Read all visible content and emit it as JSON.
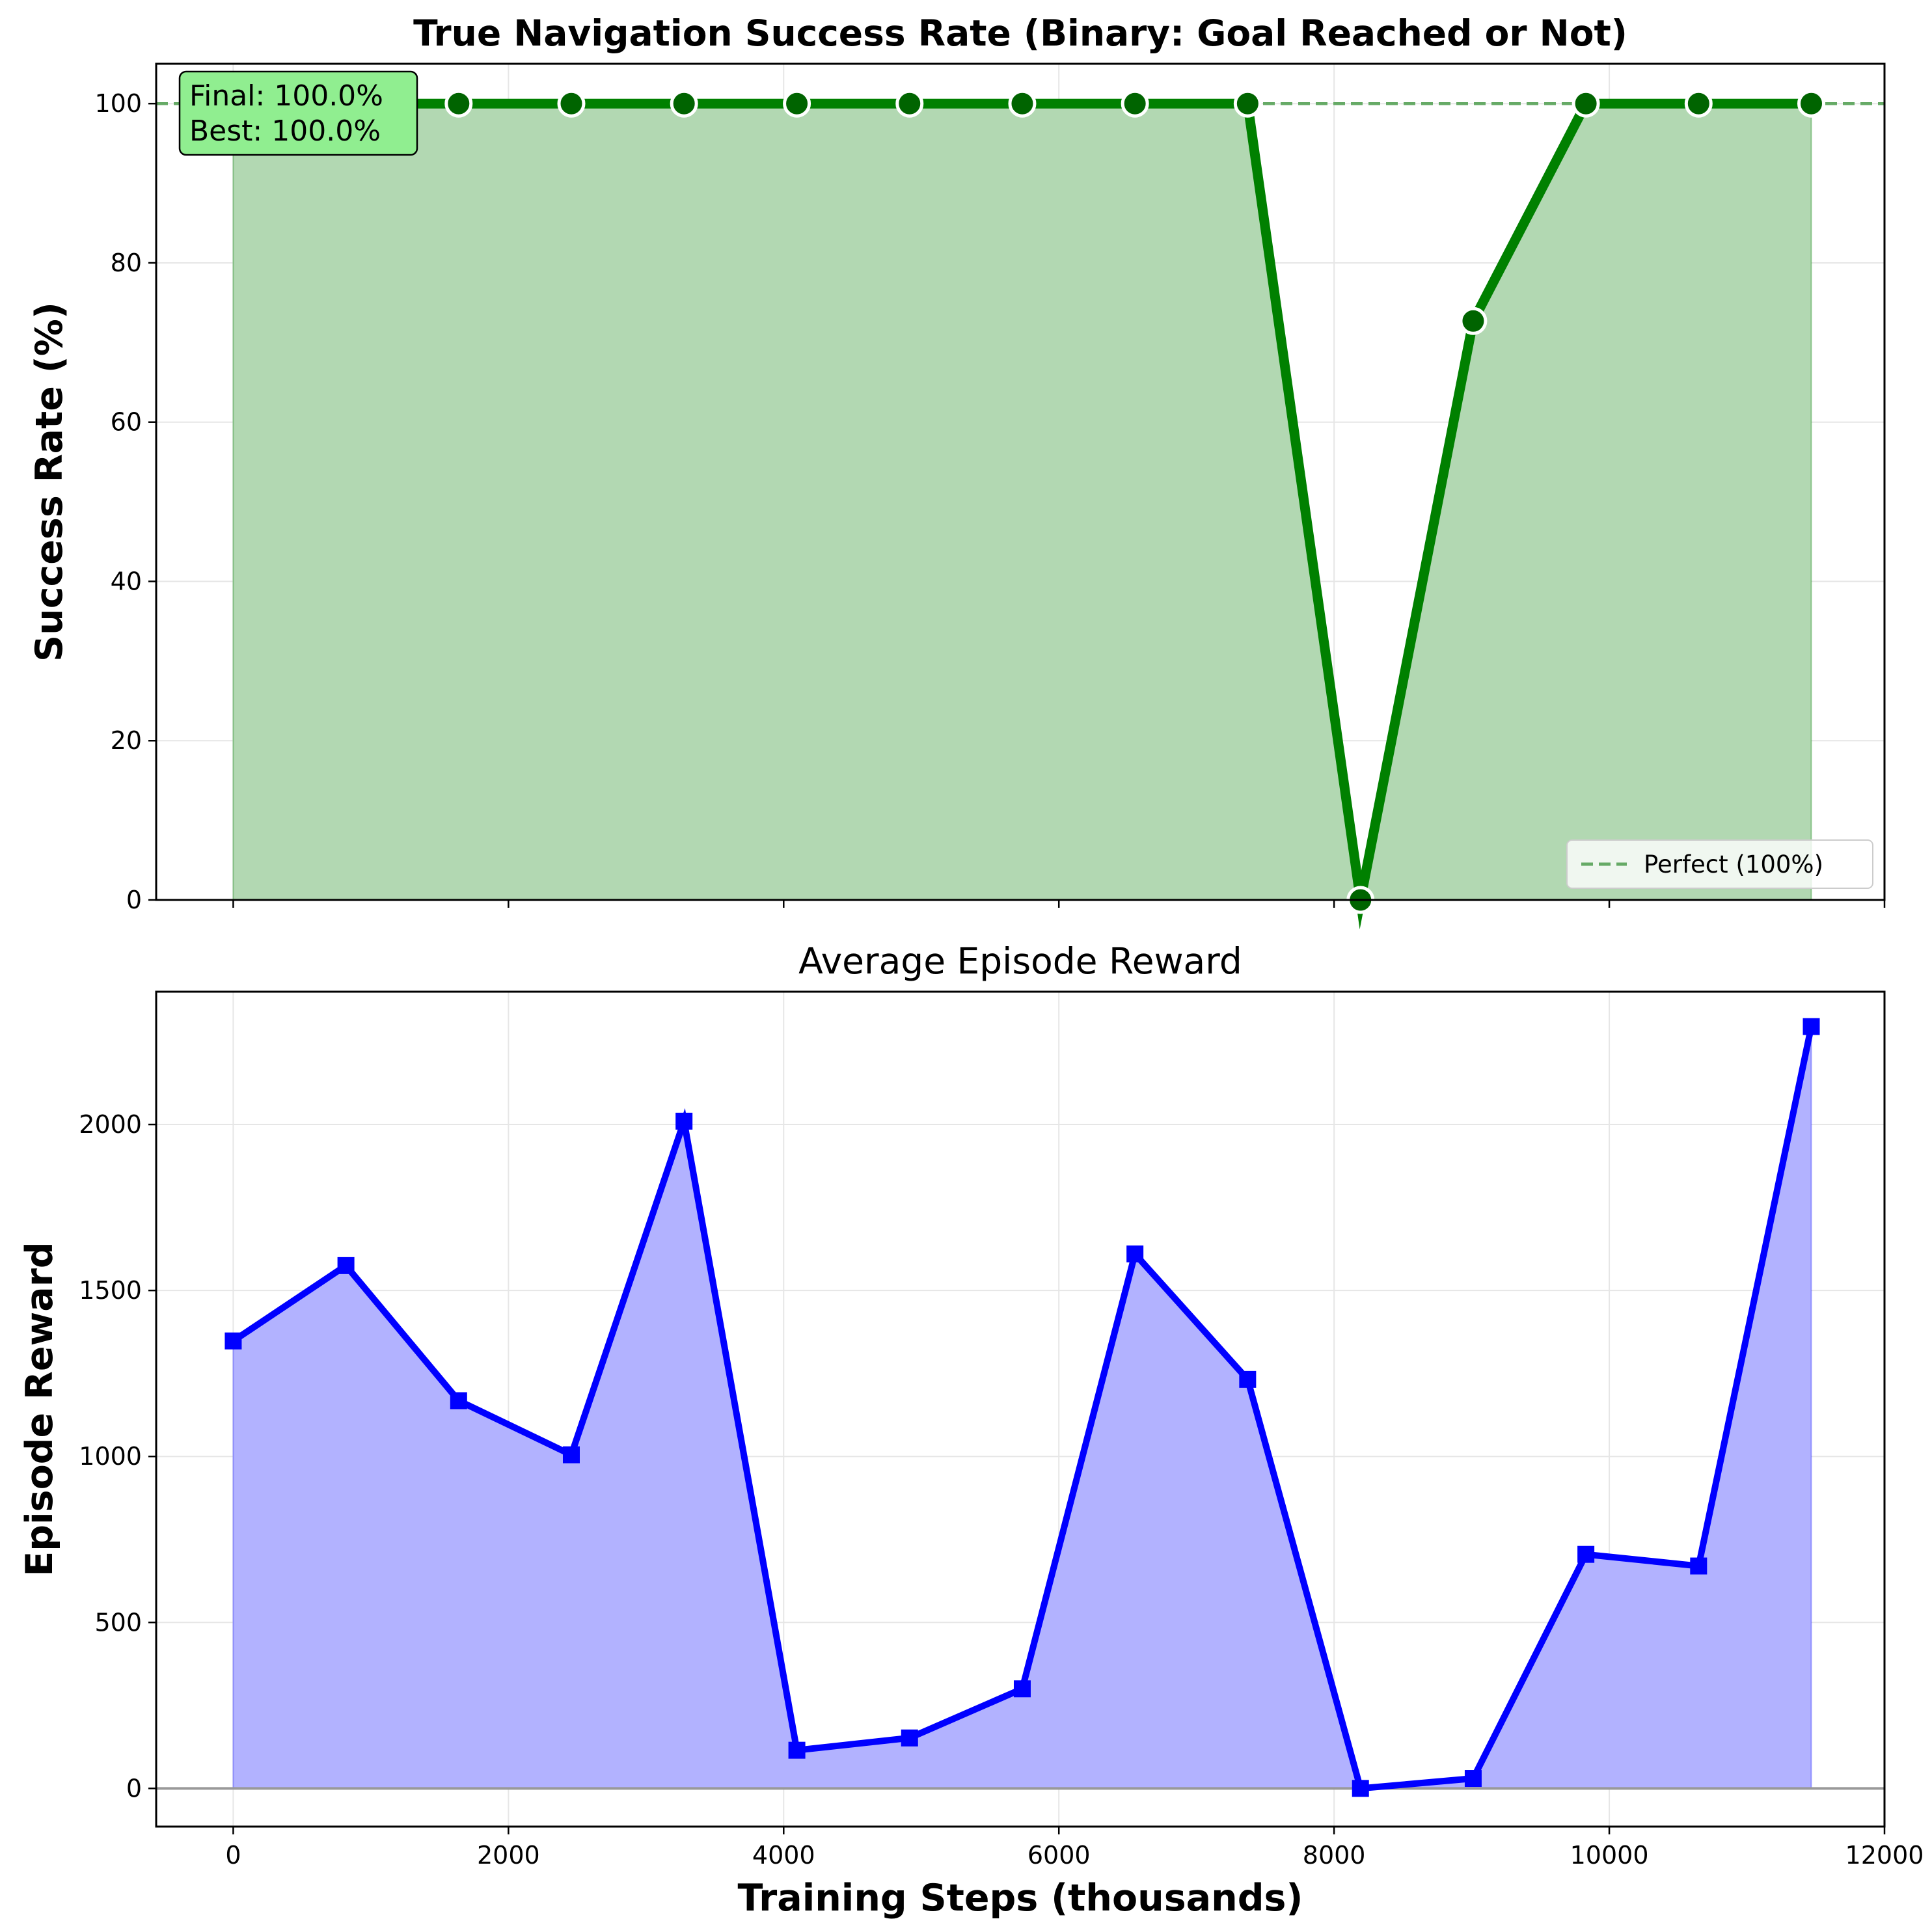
{
  "colors": {
    "success_line": "#008000",
    "success_marker": "#006400",
    "success_fill": "#b2d8b2",
    "perfect_line": "#66aa66",
    "reward_line": "#0000ff",
    "reward_fill": "#b2b2ff",
    "annotation_bg": "#90ee90",
    "zero_line": "#999999",
    "grid": "#e6e6e6"
  },
  "chart_data": [
    {
      "type": "line",
      "title": "True Navigation Success Rate (Binary: Goal Reached or Not)",
      "xlabel": "",
      "ylabel": "Success Rate (%)",
      "xlim": [
        -560,
        12000
      ],
      "ylim": [
        0,
        105
      ],
      "yticks": [
        0,
        20,
        40,
        60,
        80,
        100
      ],
      "xticks": [
        0,
        2000,
        4000,
        6000,
        8000,
        10000,
        12000
      ],
      "show_x_tick_labels": false,
      "grid": true,
      "area_fill": true,
      "series": [
        {
          "x": [
            0,
            819,
            1638,
            2457,
            3276,
            4096,
            4915,
            5734,
            6553,
            7372,
            8192,
            9011,
            9830,
            10649,
            11468
          ],
          "values": [
            100,
            100,
            100,
            100,
            100,
            100,
            100,
            100,
            100,
            100,
            0,
            72.7,
            100,
            100,
            100
          ]
        }
      ],
      "reference_line": {
        "y": 100,
        "style": "dashed",
        "legend": "Perfect (100%)"
      },
      "legend": {
        "entries": [
          "Perfect (100%)"
        ],
        "placement": "lower-right"
      },
      "annotation": {
        "lines": [
          "Final: 100.0%",
          "Best: 100.0%"
        ],
        "placement": "top-left"
      }
    },
    {
      "type": "line",
      "title": "Average Episode Reward",
      "xlabel": "Training Steps (thousands)",
      "ylabel": "Episode Reward",
      "xlim": [
        -560,
        12000
      ],
      "ylim": [
        -115,
        2400
      ],
      "yticks": [
        0,
        500,
        1000,
        1500,
        2000
      ],
      "xticks": [
        0,
        2000,
        4000,
        6000,
        8000,
        10000,
        12000
      ],
      "show_x_tick_labels": true,
      "grid": true,
      "area_fill": true,
      "zero_line": true,
      "series": [
        {
          "x": [
            0,
            819,
            1638,
            2457,
            3276,
            4096,
            4915,
            5734,
            6553,
            7372,
            8192,
            9011,
            9830,
            10649,
            11468
          ],
          "values": [
            1348,
            1575,
            1168,
            1005,
            2010,
            115,
            152,
            300,
            1610,
            1232,
            0,
            30,
            705,
            670,
            2295
          ]
        }
      ]
    }
  ]
}
